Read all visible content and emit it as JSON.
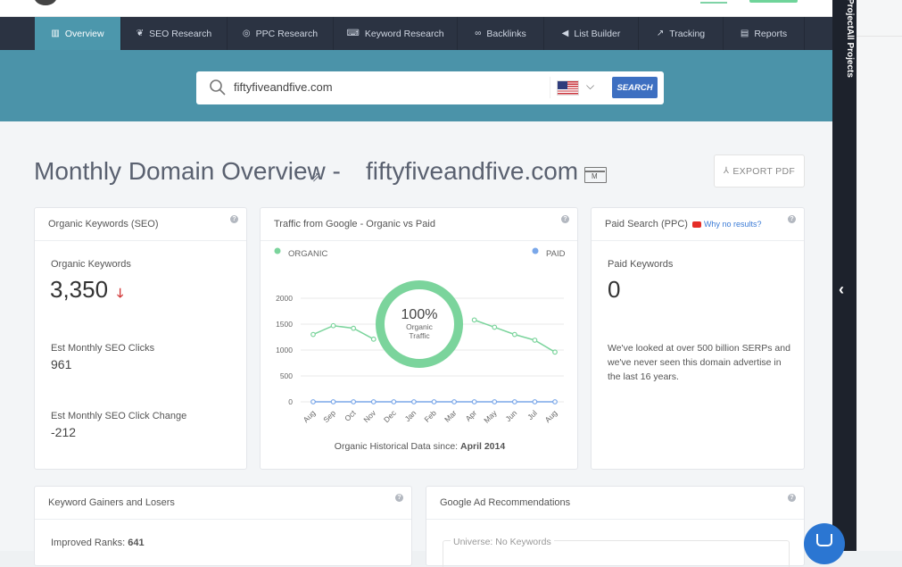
{
  "nav": {
    "items": [
      {
        "label": "Overview",
        "icon": "bar-chart-icon",
        "active": true
      },
      {
        "label": "SEO Research",
        "icon": "leaf-icon",
        "active": false
      },
      {
        "label": "PPC Research",
        "icon": "target-icon",
        "active": false
      },
      {
        "label": "Keyword Research",
        "icon": "keyboard-icon",
        "active": false
      },
      {
        "label": "Backlinks",
        "icon": "link-icon",
        "active": false
      },
      {
        "label": "List Builder",
        "icon": "megaphone-icon",
        "active": false
      },
      {
        "label": "Tracking",
        "icon": "line-chart-icon",
        "active": false
      },
      {
        "label": "Reports",
        "icon": "document-icon",
        "active": false
      }
    ]
  },
  "search": {
    "value": "fiftyfiveandfive.com",
    "country": "US",
    "button": "SEARCH"
  },
  "page": {
    "title_prefix": "Monthly Domain Overview -",
    "domain": "fiftyfiveandfive.com",
    "export_label": "EXPORT PDF",
    "doc_icon_letter": "M"
  },
  "organic_card": {
    "title": "Organic Keywords (SEO)",
    "kw_label": "Organic Keywords",
    "kw_value": "3,350",
    "clicks_label": "Est Monthly SEO Clicks",
    "clicks_value": "961",
    "change_label": "Est Monthly SEO Click Change",
    "change_value": "-212"
  },
  "traffic_card": {
    "title": "Traffic from Google - Organic vs Paid",
    "organic_legend": "ORGANIC",
    "paid_legend": "PAID",
    "donut_pct": "100%",
    "donut_line1": "Organic",
    "donut_line2": "Traffic",
    "footer_prefix": "Organic Historical Data since: ",
    "footer_date": "April 2014"
  },
  "ppc_card": {
    "title": "Paid Search (PPC)",
    "why_link": "Why no results?",
    "kw_label": "Paid Keywords",
    "kw_value": "0",
    "message": "We've looked at over 500 billion SERPs and we've never seen this domain advertise in the last 16 years."
  },
  "gainers_card": {
    "title": "Keyword Gainers and Losers",
    "improved_label": "Improved Ranks: ",
    "improved_value": "641"
  },
  "ads_card": {
    "title": "Google Ad Recommendations",
    "universe": "Universe: No Keywords"
  },
  "sidebar": {
    "label": "ProjectAll Projects"
  },
  "colors": {
    "nav_bg": "#2b3342",
    "nav_active": "#4c97ac",
    "hero": "#4b93a9",
    "organic": "#7bd49c",
    "paid": "#7aa7e9"
  },
  "chart_data": {
    "type": "line",
    "categories": [
      "Aug",
      "Sep",
      "Oct",
      "Nov",
      "Dec",
      "Jan",
      "Feb",
      "Mar",
      "Apr",
      "May",
      "Jun",
      "Jul",
      "Aug"
    ],
    "series": [
      {
        "name": "ORGANIC",
        "values": [
          1300,
          1470,
          1420,
          1210,
          null,
          null,
          null,
          null,
          1580,
          1440,
          1300,
          1190,
          960
        ]
      },
      {
        "name": "PAID",
        "values": [
          0,
          0,
          0,
          0,
          0,
          0,
          0,
          0,
          0,
          0,
          0,
          0,
          0
        ]
      }
    ],
    "yticks": [
      "2000",
      "1500",
      "1000",
      "500",
      "0"
    ],
    "ylim": [
      0,
      2000
    ],
    "grid": true,
    "legend": "top"
  }
}
